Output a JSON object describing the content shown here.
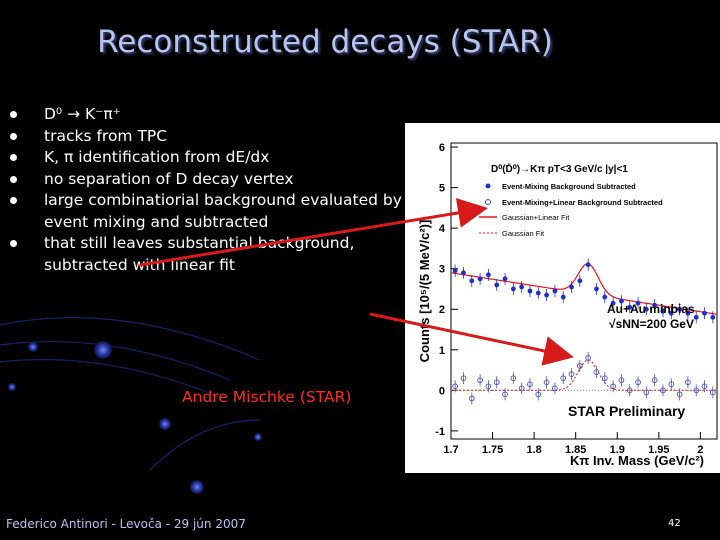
{
  "slide": {
    "title": "Reconstructed decays (STAR)",
    "bullets": [
      "D⁰ → K⁻π⁺",
      "tracks from TPC",
      "K, π identification from dE/dx",
      "no separation of D decay vertex",
      "large combinatiorial background evaluated by event mixing and subtracted",
      "that still leaves substantial background, subtracted with linear fit"
    ],
    "credit": "Andre Mischke (STAR)",
    "footer": "Federico Antinori - Levoča - 29 jún 2007",
    "page_number": "42"
  },
  "colors": {
    "title": "#b8c4ee",
    "text": "#ffffff",
    "credit": "#ff2a1a",
    "arrow": "#d91a1a",
    "filled_marker": "#1e2fd0",
    "open_marker": "#4a54b8",
    "fit_line": "#e8141d"
  },
  "chart_data": {
    "type": "scatter",
    "ylabel": "Counts [10⁵/(5 MeV/c²)]",
    "xlabel": "Kπ Inv. Mass (GeV/c²)",
    "xlim": [
      1.7,
      2.02
    ],
    "ylim": [
      -1.2,
      6.1
    ],
    "x_ticks": [
      "1.7",
      "1.75",
      "1.8",
      "1.85",
      "1.9",
      "1.95",
      "2"
    ],
    "y_ticks": [
      "-1",
      "0",
      "1",
      "2",
      "3",
      "4",
      "5",
      "6"
    ],
    "annotations": {
      "decay": "D⁰(D̄⁰)→Kπ  pT<3 GeV/c  |y|<1",
      "system": "Au+Au minbias",
      "energy": "√sNN=200 GeV",
      "prelim": "STAR Preliminary"
    },
    "legend": [
      {
        "label": "Event-Mixing Background Subtracted",
        "marker": "filled-circle"
      },
      {
        "label": "Event-Mixing+Linear Background Subtracted",
        "marker": "open-circle"
      },
      {
        "label": "Gaussian+Linear Fit",
        "marker": "solid-line"
      },
      {
        "label": "Gaussian Fit",
        "marker": "dotted-line"
      }
    ],
    "series": [
      {
        "name": "Event-Mixing Background Subtracted",
        "marker": "filled",
        "x": [
          1.705,
          1.715,
          1.725,
          1.735,
          1.745,
          1.755,
          1.765,
          1.775,
          1.785,
          1.795,
          1.805,
          1.815,
          1.825,
          1.835,
          1.845,
          1.855,
          1.865,
          1.875,
          1.885,
          1.895,
          1.905,
          1.915,
          1.925,
          1.935,
          1.945,
          1.955,
          1.965,
          1.975,
          1.985,
          1.995,
          2.005,
          2.015
        ],
        "y": [
          2.95,
          2.9,
          2.7,
          2.75,
          2.85,
          2.6,
          2.75,
          2.5,
          2.55,
          2.45,
          2.4,
          2.35,
          2.45,
          2.3,
          2.55,
          2.7,
          3.1,
          2.5,
          2.3,
          2.15,
          2.2,
          2.05,
          2.15,
          2.0,
          2.1,
          1.95,
          1.9,
          2.0,
          1.9,
          1.8,
          1.9,
          1.8
        ]
      },
      {
        "name": "Event-Mixing+Linear Background Subtracted",
        "marker": "open",
        "x": [
          1.705,
          1.715,
          1.725,
          1.735,
          1.745,
          1.755,
          1.765,
          1.775,
          1.785,
          1.795,
          1.805,
          1.815,
          1.825,
          1.835,
          1.845,
          1.855,
          1.865,
          1.875,
          1.885,
          1.895,
          1.905,
          1.915,
          1.925,
          1.935,
          1.945,
          1.955,
          1.965,
          1.975,
          1.985,
          1.995,
          2.005,
          2.015
        ],
        "y": [
          0.1,
          0.3,
          -0.2,
          0.25,
          0.1,
          0.2,
          -0.1,
          0.3,
          0.05,
          0.15,
          -0.1,
          0.2,
          0.05,
          0.3,
          0.4,
          0.6,
          0.8,
          0.45,
          0.3,
          0.1,
          0.25,
          0.0,
          0.2,
          -0.05,
          0.25,
          0.0,
          0.15,
          -0.1,
          0.2,
          0.0,
          0.1,
          -0.05
        ]
      }
    ]
  }
}
